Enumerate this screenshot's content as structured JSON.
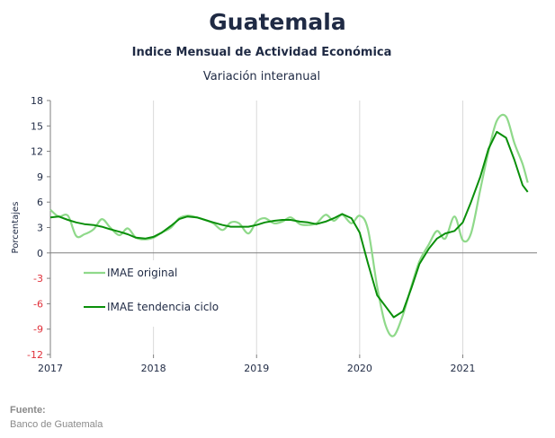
{
  "title": "Guatemala",
  "subtitle": "Indice Mensual de  Actividad Económica",
  "subtitle2": "Variación interanual",
  "source_label": "Fuente:",
  "source_text": "Banco de Guatemala",
  "colors": {
    "original": "#8fd98a",
    "trend": "#0a8f0a",
    "grid": "#d9d9d9",
    "zero": "#7f7f7f"
  },
  "chart_data": {
    "type": "line",
    "ylabel": "Porcentajes",
    "xlabel": "",
    "ylim": [
      -12,
      18
    ],
    "xlim": [
      2017.0,
      2021.72
    ],
    "yticks": [
      18,
      15,
      12,
      9,
      6,
      3,
      0,
      -3,
      -6,
      -9,
      -12
    ],
    "xticks": [
      {
        "value": 2017,
        "label": "2017"
      },
      {
        "value": 2018,
        "label": "2018"
      },
      {
        "value": 2019,
        "label": "2019"
      },
      {
        "value": 2020,
        "label": "2020"
      },
      {
        "value": 2021,
        "label": "2021"
      }
    ],
    "grid": "vertical",
    "legend_position": "left",
    "series": [
      {
        "name": "IMAE original",
        "points": [
          [
            2017.0,
            5.1
          ],
          [
            2017.08,
            4.3
          ],
          [
            2017.17,
            4.4
          ],
          [
            2017.25,
            2.0
          ],
          [
            2017.33,
            2.2
          ],
          [
            2017.42,
            2.8
          ],
          [
            2017.5,
            4.0
          ],
          [
            2017.58,
            3.0
          ],
          [
            2017.67,
            2.1
          ],
          [
            2017.75,
            2.9
          ],
          [
            2017.83,
            1.8
          ],
          [
            2017.92,
            1.6
          ],
          [
            2018.0,
            1.8
          ],
          [
            2018.08,
            2.4
          ],
          [
            2018.17,
            3.0
          ],
          [
            2018.25,
            4.1
          ],
          [
            2018.33,
            4.4
          ],
          [
            2018.42,
            4.2
          ],
          [
            2018.5,
            3.9
          ],
          [
            2018.58,
            3.5
          ],
          [
            2018.67,
            2.7
          ],
          [
            2018.75,
            3.6
          ],
          [
            2018.83,
            3.5
          ],
          [
            2018.92,
            2.3
          ],
          [
            2019.0,
            3.7
          ],
          [
            2019.08,
            4.1
          ],
          [
            2019.17,
            3.5
          ],
          [
            2019.25,
            3.7
          ],
          [
            2019.33,
            4.2
          ],
          [
            2019.42,
            3.4
          ],
          [
            2019.5,
            3.3
          ],
          [
            2019.58,
            3.5
          ],
          [
            2019.67,
            4.5
          ],
          [
            2019.75,
            3.8
          ],
          [
            2019.83,
            4.5
          ],
          [
            2019.92,
            3.5
          ],
          [
            2020.0,
            4.4
          ],
          [
            2020.08,
            2.8
          ],
          [
            2020.17,
            -4.0
          ],
          [
            2020.25,
            -8.5
          ],
          [
            2020.33,
            -9.8
          ],
          [
            2020.42,
            -7.3
          ],
          [
            2020.5,
            -4.0
          ],
          [
            2020.58,
            -1.0
          ],
          [
            2020.67,
            1.0
          ],
          [
            2020.75,
            2.6
          ],
          [
            2020.83,
            1.7
          ],
          [
            2020.92,
            4.3
          ],
          [
            2021.0,
            1.5
          ],
          [
            2021.08,
            2.3
          ],
          [
            2021.17,
            7.5
          ],
          [
            2021.25,
            12.0
          ],
          [
            2021.33,
            15.6
          ],
          [
            2021.42,
            16.1
          ],
          [
            2021.5,
            13.0
          ],
          [
            2021.58,
            10.5
          ],
          [
            2021.63,
            8.3
          ]
        ]
      },
      {
        "name": "IMAE tendencia ciclo",
        "points": [
          [
            2017.0,
            4.2
          ],
          [
            2017.08,
            4.3
          ],
          [
            2017.17,
            3.9
          ],
          [
            2017.25,
            3.6
          ],
          [
            2017.33,
            3.4
          ],
          [
            2017.42,
            3.3
          ],
          [
            2017.5,
            3.1
          ],
          [
            2017.58,
            2.8
          ],
          [
            2017.67,
            2.5
          ],
          [
            2017.75,
            2.2
          ],
          [
            2017.83,
            1.8
          ],
          [
            2017.92,
            1.7
          ],
          [
            2018.0,
            1.9
          ],
          [
            2018.08,
            2.4
          ],
          [
            2018.17,
            3.2
          ],
          [
            2018.25,
            4.0
          ],
          [
            2018.33,
            4.3
          ],
          [
            2018.42,
            4.2
          ],
          [
            2018.5,
            3.9
          ],
          [
            2018.58,
            3.6
          ],
          [
            2018.67,
            3.3
          ],
          [
            2018.75,
            3.1
          ],
          [
            2018.83,
            3.1
          ],
          [
            2018.92,
            3.1
          ],
          [
            2019.0,
            3.3
          ],
          [
            2019.08,
            3.6
          ],
          [
            2019.17,
            3.8
          ],
          [
            2019.25,
            3.9
          ],
          [
            2019.33,
            3.9
          ],
          [
            2019.42,
            3.7
          ],
          [
            2019.5,
            3.6
          ],
          [
            2019.58,
            3.4
          ],
          [
            2019.67,
            3.7
          ],
          [
            2019.75,
            4.1
          ],
          [
            2019.83,
            4.6
          ],
          [
            2019.92,
            4.1
          ],
          [
            2020.0,
            2.4
          ],
          [
            2020.08,
            -1.2
          ],
          [
            2020.17,
            -5.0
          ],
          [
            2020.25,
            -6.3
          ],
          [
            2020.33,
            -7.6
          ],
          [
            2020.42,
            -6.9
          ],
          [
            2020.5,
            -4.2
          ],
          [
            2020.58,
            -1.3
          ],
          [
            2020.67,
            0.5
          ],
          [
            2020.75,
            1.7
          ],
          [
            2020.83,
            2.3
          ],
          [
            2020.92,
            2.6
          ],
          [
            2021.0,
            3.6
          ],
          [
            2021.08,
            6.0
          ],
          [
            2021.17,
            9.0
          ],
          [
            2021.25,
            12.3
          ],
          [
            2021.33,
            14.3
          ],
          [
            2021.42,
            13.6
          ],
          [
            2021.5,
            11.0
          ],
          [
            2021.58,
            8.0
          ],
          [
            2021.63,
            7.2
          ]
        ]
      }
    ]
  }
}
